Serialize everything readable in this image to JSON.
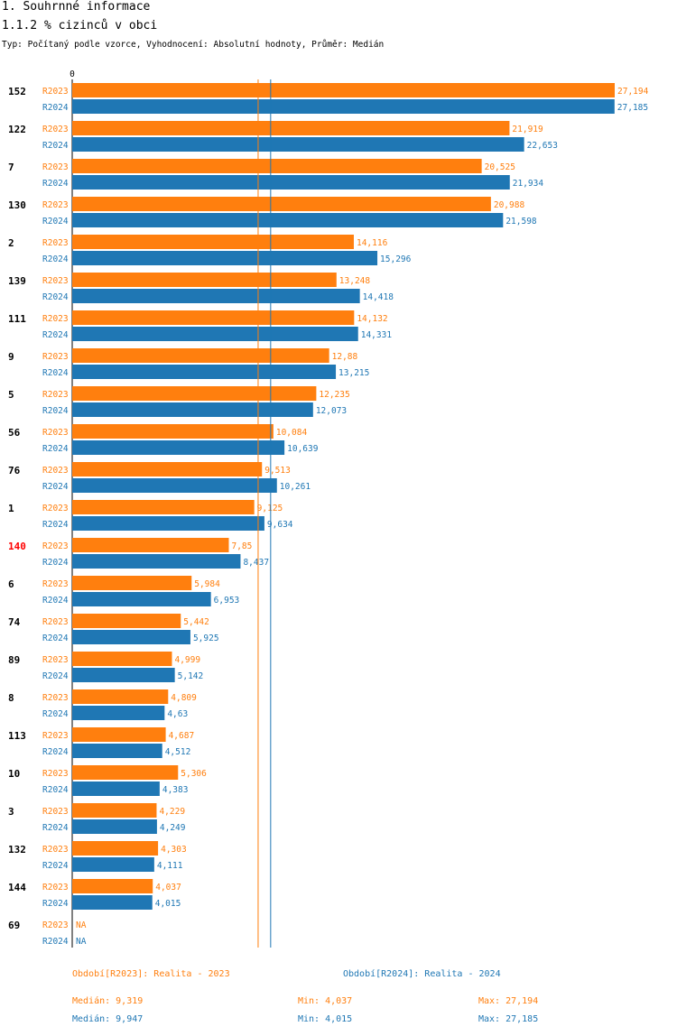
{
  "header": {
    "title": "1. Souhrnné informace",
    "subtitle": "1.1.2 % cizinců v obci",
    "type_line": "Typ: Počítaný podle vzorce, Vyhodnocení: Absolutní hodnoty, Průměr: Medián"
  },
  "colors": {
    "r2023": "#ff7f0e",
    "r2024": "#1f77b4",
    "highlight": "#ff0000"
  },
  "chart_data": {
    "type": "bar",
    "orientation": "horizontal",
    "title": "1.1.2 % cizinců v obci",
    "axis_zero_label": "0",
    "xlim": [
      0,
      27.194
    ],
    "highlight_category": "140",
    "categories": [
      "152",
      "122",
      "7",
      "130",
      "2",
      "139",
      "111",
      "9",
      "5",
      "56",
      "76",
      "1",
      "140",
      "6",
      "74",
      "89",
      "8",
      "113",
      "10",
      "3",
      "132",
      "144",
      "69"
    ],
    "series": [
      {
        "name": "R2023",
        "values": [
          27.194,
          21.919,
          20.525,
          20.988,
          14.116,
          13.248,
          14.132,
          12.88,
          12.235,
          10.084,
          9.513,
          9.125,
          7.85,
          5.984,
          5.442,
          4.999,
          4.809,
          4.687,
          5.306,
          4.229,
          4.303,
          4.037,
          null
        ],
        "labels": [
          "27,194",
          "21,919",
          "20,525",
          "20,988",
          "14,116",
          "13,248",
          "14,132",
          "12,88",
          "12,235",
          "10,084",
          "9,513",
          "9,125",
          "7,85",
          "5,984",
          "5,442",
          "4,999",
          "4,809",
          "4,687",
          "5,306",
          "4,229",
          "4,303",
          "4,037",
          "NA"
        ],
        "median": 9.319
      },
      {
        "name": "R2024",
        "values": [
          27.185,
          22.653,
          21.934,
          21.598,
          15.296,
          14.418,
          14.331,
          13.215,
          12.073,
          10.639,
          10.261,
          9.634,
          8.437,
          6.953,
          5.925,
          5.142,
          4.63,
          4.512,
          4.383,
          4.249,
          4.111,
          4.015,
          null
        ],
        "labels": [
          "27,185",
          "22,653",
          "21,934",
          "21,598",
          "15,296",
          "14,418",
          "14,331",
          "13,215",
          "12,073",
          "10,639",
          "10,261",
          "9,634",
          "8,437",
          "6,953",
          "5,925",
          "5,142",
          "4,63",
          "4,512",
          "4,383",
          "4,249",
          "4,111",
          "4,015",
          "NA"
        ],
        "median": 9.947
      }
    ]
  },
  "legend": {
    "r2023": "Období[R2023]: Realita - 2023",
    "r2024": "Období[R2024]: Realita - 2024"
  },
  "stats": {
    "r2023": {
      "median": "Medián: 9,319",
      "min": "Min: 4,037",
      "max": "Max: 27,194"
    },
    "r2024": {
      "median": "Medián: 9,947",
      "min": "Min: 4,015",
      "max": "Max: 27,185"
    }
  }
}
